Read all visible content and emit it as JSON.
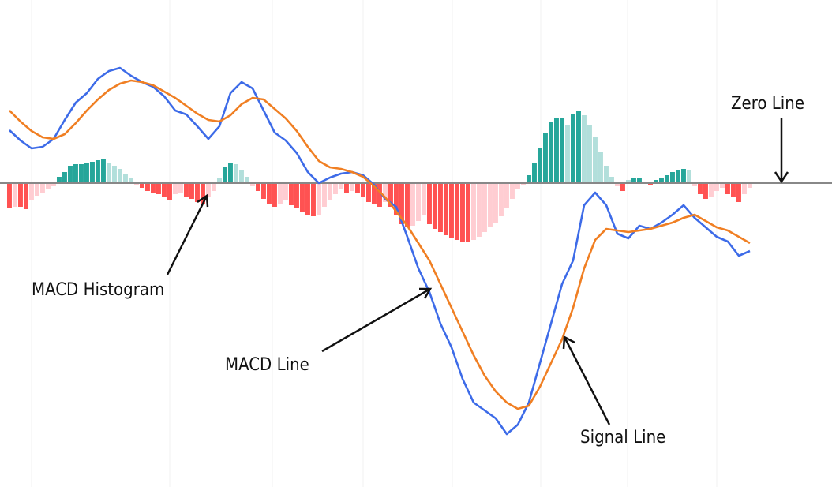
{
  "chart_data": [
    {
      "type": "bar",
      "values": [
        -0.32,
        -0.3,
        -0.3,
        -0.33,
        -0.22,
        -0.16,
        -0.12,
        -0.08,
        -0.04,
        0.08,
        0.14,
        0.22,
        0.24,
        0.24,
        0.26,
        0.27,
        0.29,
        0.3,
        0.26,
        0.22,
        0.18,
        0.12,
        0.06,
        -0.02,
        -0.06,
        -0.1,
        -0.12,
        -0.14,
        -0.18,
        -0.22,
        -0.14,
        -0.12,
        -0.18,
        -0.2,
        -0.24,
        -0.26,
        -0.18,
        -0.1,
        0.06,
        0.2,
        0.26,
        0.24,
        0.16,
        0.08,
        -0.04,
        -0.1,
        -0.2,
        -0.26,
        -0.3,
        -0.26,
        -0.22,
        -0.28,
        -0.32,
        -0.36,
        -0.4,
        -0.42,
        -0.4,
        -0.3,
        -0.22,
        -0.14,
        -0.08,
        -0.12,
        -0.1,
        -0.12,
        -0.18,
        -0.24,
        -0.26,
        -0.3,
        -0.24,
        -0.3,
        -0.4,
        -0.52,
        -0.56,
        -0.54,
        -0.48,
        -0.4,
        -0.52,
        -0.58,
        -0.62,
        -0.66,
        -0.7,
        -0.72,
        -0.74,
        -0.74,
        -0.72,
        -0.68,
        -0.62,
        -0.56,
        -0.5,
        -0.42,
        -0.32,
        -0.2,
        -0.08,
        -0.02,
        0.1,
        0.26,
        0.44,
        0.64,
        0.78,
        0.82,
        0.82,
        0.74,
        0.88,
        0.92,
        0.86,
        0.74,
        0.58,
        0.4,
        0.22,
        0.08,
        -0.04,
        -0.1,
        0.04,
        0.06,
        0.06,
        0.02,
        -0.02,
        0.04,
        0.06,
        0.1,
        0.14,
        0.16,
        0.18,
        0.16,
        -0.04,
        -0.14,
        -0.2,
        -0.18,
        -0.1,
        -0.06,
        -0.14,
        -0.18,
        -0.24,
        -0.14,
        -0.06
      ],
      "colors": {
        "positive_rising": "#26a69a",
        "positive_falling": "#b2dfdb",
        "negative_falling": "#ff5252",
        "negative_rising": "#ffcdd2"
      },
      "xlim": [
        -1.71,
        148.86
      ],
      "ylim": [
        -3.85,
        2.32
      ]
    },
    {
      "type": "line",
      "x": [
        0,
        2,
        4,
        6,
        8,
        10,
        12,
        14,
        16,
        18,
        20,
        22,
        24,
        26,
        28,
        30,
        32,
        34,
        36,
        38,
        40,
        42,
        44,
        46,
        48,
        50,
        52,
        54,
        56,
        58,
        60,
        62,
        64,
        66,
        68,
        70,
        72,
        74,
        76,
        78,
        80,
        82,
        84,
        86,
        88,
        90,
        92,
        94,
        96,
        98,
        100,
        102,
        104,
        106,
        108,
        110,
        112,
        114,
        116,
        118,
        120,
        122,
        124,
        126,
        128,
        130,
        132,
        134
      ],
      "series": [
        {
          "name": "MACD Line",
          "color": "#3d6be8",
          "values": [
            0.67,
            0.54,
            0.44,
            0.46,
            0.56,
            0.8,
            1.02,
            1.14,
            1.32,
            1.42,
            1.46,
            1.36,
            1.28,
            1.22,
            1.1,
            0.92,
            0.87,
            0.72,
            0.56,
            0.72,
            1.14,
            1.28,
            1.2,
            0.92,
            0.64,
            0.54,
            0.38,
            0.14,
            0,
            0.07,
            0.12,
            0.14,
            0.1,
            -0.02,
            -0.2,
            -0.3,
            -0.68,
            -1.08,
            -1.38,
            -1.78,
            -2.08,
            -2.48,
            -2.78,
            -2.88,
            -2.98,
            -3.18,
            -3.06,
            -2.78,
            -2.28,
            -1.78,
            -1.28,
            -0.98,
            -0.28,
            -0.12,
            -0.28,
            -0.64,
            -0.7,
            -0.54,
            -0.58,
            -0.5,
            -0.4,
            -0.28,
            -0.44,
            -0.56,
            -0.68,
            -0.74,
            -0.92,
            -0.86
          ]
        },
        {
          "name": "Signal Line",
          "color": "#f07f23",
          "values": [
            0.92,
            0.78,
            0.66,
            0.58,
            0.56,
            0.62,
            0.76,
            0.92,
            1.06,
            1.18,
            1.26,
            1.3,
            1.28,
            1.24,
            1.16,
            1.08,
            0.98,
            0.88,
            0.8,
            0.78,
            0.86,
            1,
            1.08,
            1.06,
            0.94,
            0.82,
            0.66,
            0.46,
            0.28,
            0.2,
            0.18,
            0.14,
            0.08,
            -0.04,
            -0.18,
            -0.36,
            -0.54,
            -0.76,
            -0.98,
            -1.28,
            -1.58,
            -1.88,
            -2.18,
            -2.44,
            -2.64,
            -2.78,
            -2.86,
            -2.82,
            -2.58,
            -2.28,
            -1.98,
            -1.58,
            -1.08,
            -0.72,
            -0.58,
            -0.6,
            -0.62,
            -0.6,
            -0.58,
            -0.54,
            -0.5,
            -0.44,
            -0.4,
            -0.48,
            -0.56,
            -0.6,
            -0.68,
            -0.76
          ]
        }
      ],
      "annotations": [
        "Zero Line",
        "MACD Histogram",
        "MACD Line",
        "Signal Line"
      ],
      "xlim": [
        -1.71,
        148.86
      ],
      "ylim": [
        -3.85,
        2.32
      ]
    }
  ]
}
